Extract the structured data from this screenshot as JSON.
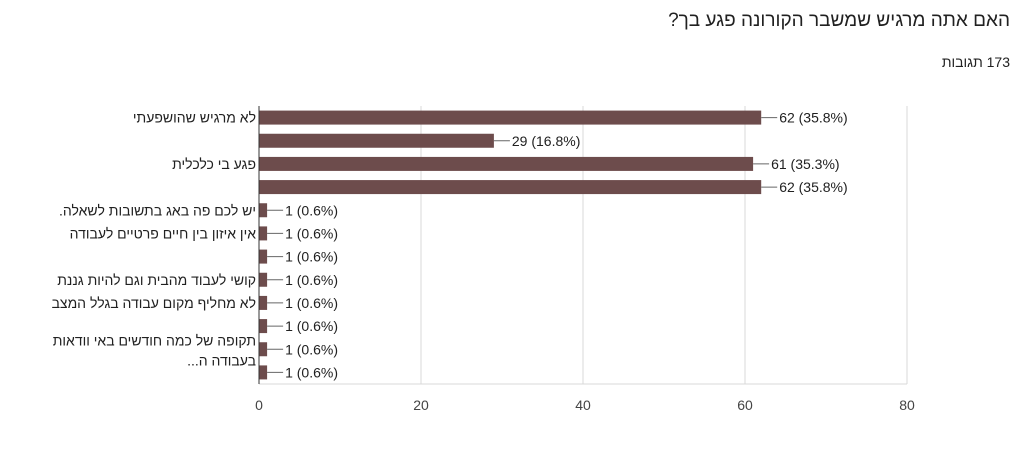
{
  "header": {
    "title": "האם אתה מרגיש שמשבר הקורונה פגע בך?",
    "responses": "173 תגובות"
  },
  "chart_data": {
    "type": "bar",
    "orientation": "horizontal",
    "bar_color": "#6d4c4c",
    "categories": [
      "לא מרגיש שהושפעתי",
      "",
      "פגע בי כלכלית",
      "",
      "יש לכם פה באג בתשובות לשאלה.",
      "אין איזון בין חיים פרטיים לעבודה",
      "",
      "קושי לעבוד מהבית וגם להיות גננת",
      "לא מחליף מקום עבודה בגלל המצב",
      "",
      "תקופה של כמה חודשים באי וודאות\nבעבודה ה...",
      ""
    ],
    "values": [
      62,
      29,
      61,
      62,
      1,
      1,
      1,
      1,
      1,
      1,
      1,
      1
    ],
    "data_labels": [
      "62 (35.8%)",
      "29 (16.8%)",
      "61 (35.3%)",
      "62 (35.8%)",
      "1 (0.6%)",
      "1 (0.6%)",
      "1 (0.6%)",
      "1 (0.6%)",
      "1 (0.6%)",
      "1 (0.6%)",
      "1 (0.6%)",
      "1 (0.6%)"
    ],
    "xlim": [
      0,
      80
    ],
    "xticks": [
      "0",
      "20",
      "40",
      "60",
      "80"
    ],
    "grid": true
  }
}
